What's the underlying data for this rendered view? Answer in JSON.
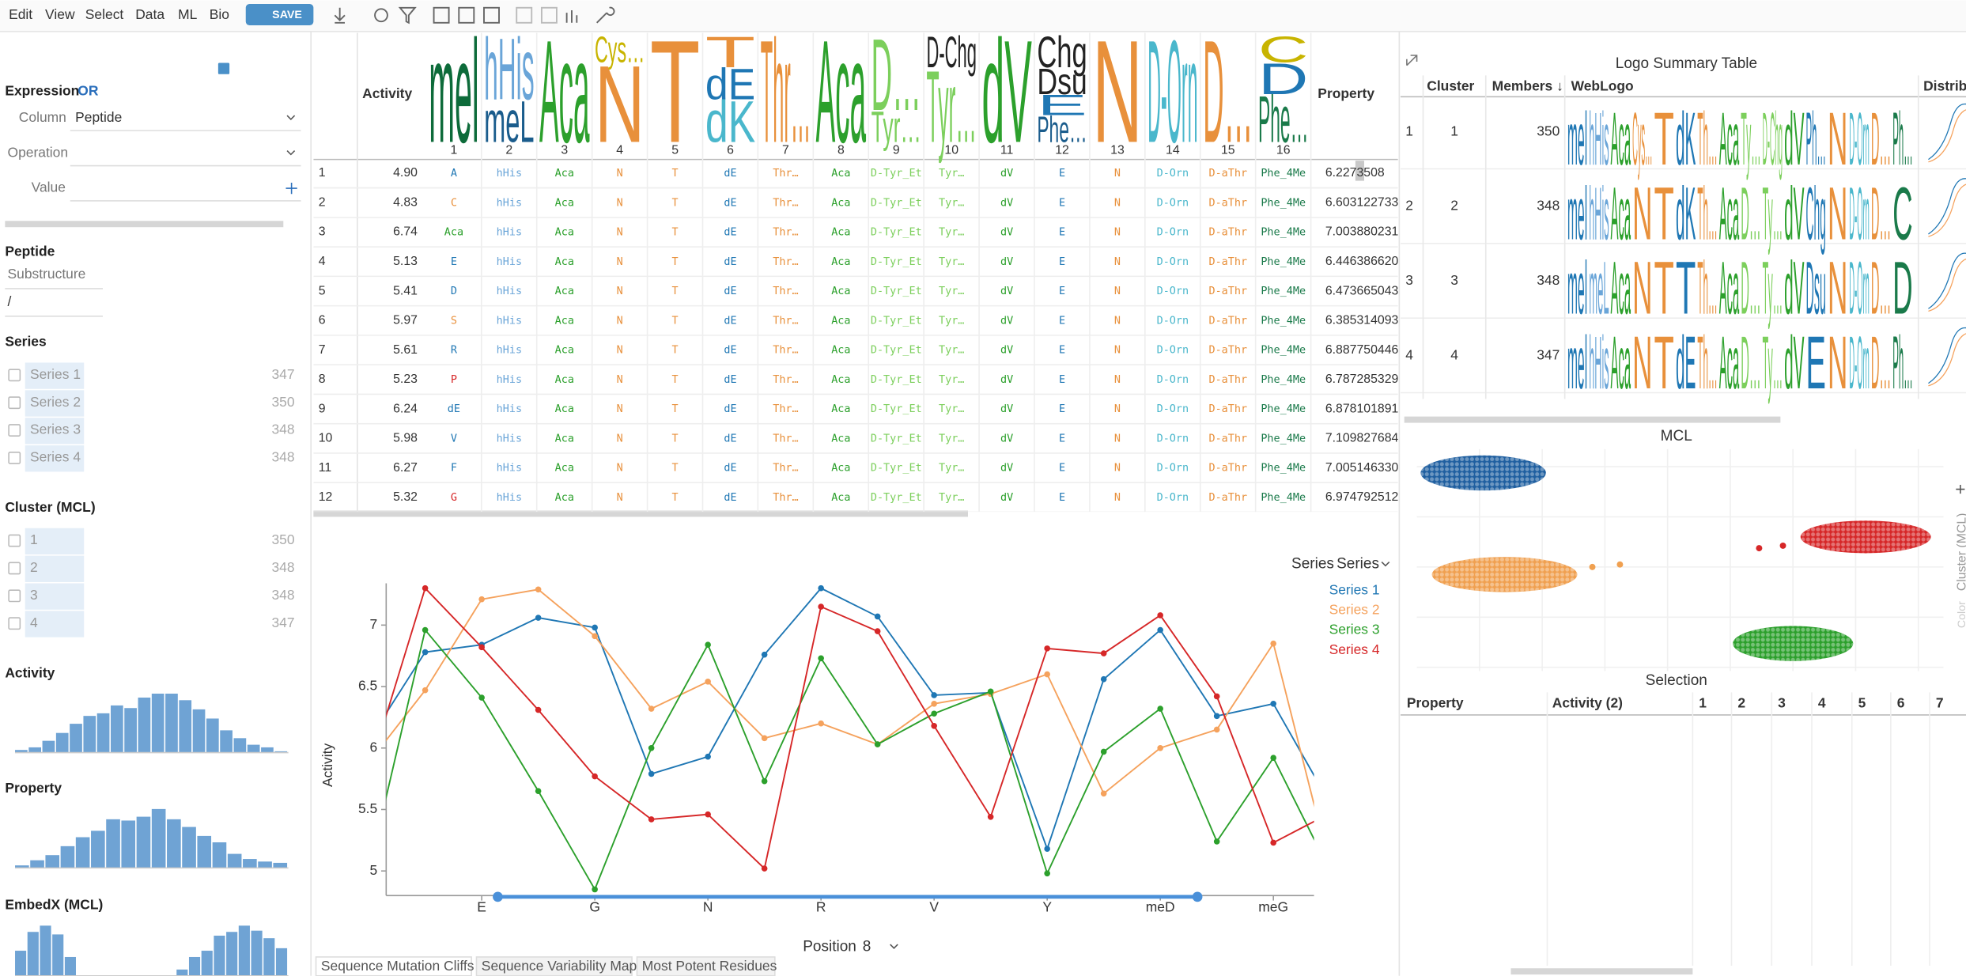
{
  "menu": [
    "Edit",
    "View",
    "Select",
    "Data",
    "ML",
    "Bio"
  ],
  "save": "SAVE",
  "filters": {
    "expression": "Expression",
    "mode": "OR",
    "fields": [
      {
        "label": "Column",
        "value": "Peptide"
      },
      {
        "label": "Operation",
        "value": ""
      },
      {
        "label": "Value",
        "value": ""
      }
    ],
    "peptide": {
      "title": "Peptide",
      "substructure": "Substructure",
      "pattern": "/"
    },
    "series": {
      "title": "Series",
      "items": [
        "Series 1",
        "Series 2",
        "Series 3",
        "Series 4"
      ],
      "counts": [
        347,
        350,
        348,
        348
      ]
    },
    "clusters": {
      "title": "Cluster (MCL)",
      "items": [
        "1",
        "2",
        "3",
        "4"
      ],
      "counts": [
        350,
        348,
        348,
        347
      ]
    },
    "histograms": [
      {
        "title": "Activity",
        "bars": [
          2,
          4,
          9,
          15,
          22,
          28,
          30,
          36,
          34,
          42,
          45,
          45,
          40,
          33,
          26,
          17,
          11,
          6,
          4,
          1
        ]
      },
      {
        "title": "Property",
        "bars": [
          2,
          6,
          10,
          17,
          24,
          29,
          38,
          37,
          40,
          46,
          38,
          32,
          25,
          20,
          11,
          7,
          5,
          4
        ]
      },
      {
        "title": "EmbedX (MCL)",
        "bars": [
          20,
          35,
          40,
          33,
          15,
          0,
          0,
          0,
          0,
          0,
          0,
          0,
          0,
          5,
          15,
          20,
          32,
          35,
          40,
          36,
          30,
          22
        ]
      }
    ]
  },
  "grid": {
    "columns": {
      "activity": "Activity",
      "property": "Property",
      "positions": [
        "1",
        "2",
        "3",
        "4",
        "5",
        "6",
        "7",
        "8",
        "9",
        "10",
        "11",
        "12",
        "13",
        "14",
        "15",
        "16"
      ]
    },
    "logos": [
      [
        {
          "text": "mel",
          "color": "#0d6b3a",
          "share": 1
        }
      ],
      [
        {
          "text": "hHis",
          "color": "#6aa5d8",
          "share": 0.6
        },
        {
          "text": "meL",
          "color": "#1a5c8c",
          "share": 0.4
        }
      ],
      [
        {
          "text": "Aca",
          "color": "#2ca02c",
          "share": 1
        }
      ],
      [
        {
          "text": "Cys…",
          "color": "#c8b400",
          "share": 0.25
        },
        {
          "text": "N",
          "color": "#e8903b",
          "share": 0.75
        }
      ],
      [
        {
          "text": "T",
          "color": "#e8903b",
          "share": 1
        }
      ],
      [
        {
          "text": "T",
          "color": "#e8903b",
          "share": 0.3
        },
        {
          "text": "dE",
          "color": "#1f77b4",
          "share": 0.3
        },
        {
          "text": "dK",
          "color": "#4ab7cc",
          "share": 0.4
        }
      ],
      [
        {
          "text": "Thr…",
          "color": "#e8903b",
          "share": 1
        }
      ],
      [
        {
          "text": "Aca",
          "color": "#2ca02c",
          "share": 1
        }
      ],
      [
        {
          "text": "D…",
          "color": "#7ccf5c",
          "share": 0.7
        },
        {
          "text": "Tyr…",
          "color": "#7ccf5c",
          "share": 0.3
        }
      ],
      [
        {
          "text": "D-Chg",
          "color": "#222222",
          "share": 0.3
        },
        {
          "text": "Tyr…",
          "color": "#7ccf5c",
          "share": 0.7
        }
      ],
      [
        {
          "text": "dV",
          "color": "#2ca02c",
          "share": 1
        }
      ],
      [
        {
          "text": "Chg",
          "color": "#222222",
          "share": 0.3
        },
        {
          "text": "Dsu",
          "color": "#222222",
          "share": 0.25
        },
        {
          "text": "E",
          "color": "#1f77b4",
          "share": 0.2
        },
        {
          "text": "Phe…",
          "color": "#1a5c8c",
          "share": 0.25
        }
      ],
      [
        {
          "text": "N",
          "color": "#e8903b",
          "share": 1
        }
      ],
      [
        {
          "text": "D-Orn",
          "color": "#4ab7cc",
          "share": 1
        }
      ],
      [
        {
          "text": "D…",
          "color": "#e8903b",
          "share": 1
        }
      ],
      [
        {
          "text": "C",
          "color": "#c8b400",
          "share": 0.25
        },
        {
          "text": "D",
          "color": "#1f77b4",
          "share": 0.3
        },
        {
          "text": "Phe…",
          "color": "#1a7a4a",
          "share": 0.45
        }
      ]
    ],
    "position_colors": [
      "#1f77b4",
      "#6aa5d8",
      "#2ca02c",
      "#e8903b",
      "#e8903b",
      "#1f77b4",
      "#e8903b",
      "#2ca02c",
      "#7ccf5c",
      "#7ccf5c",
      "#2ca02c",
      "#1f77b4",
      "#e8903b",
      "#4ab7cc",
      "#e8903b",
      "#1a7a4a"
    ],
    "first_colors": [
      "#1f77b4",
      "#e8903b",
      "#2ca02c",
      "#1f77b4",
      "#1f77b4",
      "#e8903b",
      "#1f77b4",
      "#d62728",
      "#1f77b4",
      "#1f77b4",
      "#1f77b4",
      "#d62728"
    ],
    "rows": [
      [
        "1",
        "4.90",
        "A",
        "hHis",
        "Aca",
        "N",
        "T",
        "dE",
        "Thr…",
        "Aca",
        "D-Tyr_Et",
        "Tyr…",
        "dV",
        "E",
        "N",
        "D-Orn",
        "D-aThr",
        "Phe_4Me",
        "6.2273508"
      ],
      [
        "2",
        "4.83",
        "C",
        "hHis",
        "Aca",
        "N",
        "T",
        "dE",
        "Thr…",
        "Aca",
        "D-Tyr_Et",
        "Tyr…",
        "dV",
        "E",
        "N",
        "D-Orn",
        "D-aThr",
        "Phe_4Me",
        "6.603122733"
      ],
      [
        "3",
        "6.74",
        "Aca",
        "hHis",
        "Aca",
        "N",
        "T",
        "dE",
        "Thr…",
        "Aca",
        "D-Tyr_Et",
        "Tyr…",
        "dV",
        "E",
        "N",
        "D-Orn",
        "D-aThr",
        "Phe_4Me",
        "7.003880231"
      ],
      [
        "4",
        "5.13",
        "E",
        "hHis",
        "Aca",
        "N",
        "T",
        "dE",
        "Thr…",
        "Aca",
        "D-Tyr_Et",
        "Tyr…",
        "dV",
        "E",
        "N",
        "D-Orn",
        "D-aThr",
        "Phe_4Me",
        "6.446386620"
      ],
      [
        "5",
        "5.41",
        "D",
        "hHis",
        "Aca",
        "N",
        "T",
        "dE",
        "Thr…",
        "Aca",
        "D-Tyr_Et",
        "Tyr…",
        "dV",
        "E",
        "N",
        "D-Orn",
        "D-aThr",
        "Phe_4Me",
        "6.473665043"
      ],
      [
        "6",
        "5.97",
        "S",
        "hHis",
        "Aca",
        "N",
        "T",
        "dE",
        "Thr…",
        "Aca",
        "D-Tyr_Et",
        "Tyr…",
        "dV",
        "E",
        "N",
        "D-Orn",
        "D-aThr",
        "Phe_4Me",
        "6.385314093"
      ],
      [
        "7",
        "5.61",
        "R",
        "hHis",
        "Aca",
        "N",
        "T",
        "dE",
        "Thr…",
        "Aca",
        "D-Tyr_Et",
        "Tyr…",
        "dV",
        "E",
        "N",
        "D-Orn",
        "D-aThr",
        "Phe_4Me",
        "6.887750446"
      ],
      [
        "8",
        "5.23",
        "P",
        "hHis",
        "Aca",
        "N",
        "T",
        "dE",
        "Thr…",
        "Aca",
        "D-Tyr_Et",
        "Tyr…",
        "dV",
        "E",
        "N",
        "D-Orn",
        "D-aThr",
        "Phe_4Me",
        "6.787285329"
      ],
      [
        "9",
        "6.24",
        "dE",
        "hHis",
        "Aca",
        "N",
        "T",
        "dE",
        "Thr…",
        "Aca",
        "D-Tyr_Et",
        "Tyr…",
        "dV",
        "E",
        "N",
        "D-Orn",
        "D-aThr",
        "Phe_4Me",
        "6.878101891"
      ],
      [
        "10",
        "5.98",
        "V",
        "hHis",
        "Aca",
        "N",
        "T",
        "dE",
        "Thr…",
        "Aca",
        "D-Tyr_Et",
        "Tyr…",
        "dV",
        "E",
        "N",
        "D-Orn",
        "D-aThr",
        "Phe_4Me",
        "7.109827684"
      ],
      [
        "11",
        "6.27",
        "F",
        "hHis",
        "Aca",
        "N",
        "T",
        "dE",
        "Thr…",
        "Aca",
        "D-Tyr_Et",
        "Tyr…",
        "dV",
        "E",
        "N",
        "D-Orn",
        "D-aThr",
        "Phe_4Me",
        "7.005146330"
      ],
      [
        "12",
        "5.32",
        "G",
        "hHis",
        "Aca",
        "N",
        "T",
        "dE",
        "Thr…",
        "Aca",
        "D-Tyr_Et",
        "Tyr…",
        "dV",
        "E",
        "N",
        "D-Orn",
        "D-aThr",
        "Phe_4Me",
        "6.974792512"
      ]
    ]
  },
  "chart_data": {
    "type": "line",
    "y_label": "Activity",
    "x_label": "Position",
    "x_value": "8",
    "selector_label": "Series",
    "selector_value": "Series",
    "categories": [
      null,
      null,
      "E",
      null,
      "G",
      null,
      "N",
      null,
      "R",
      null,
      "V",
      null,
      "Y",
      null,
      "meD",
      null,
      "meG",
      null
    ],
    "ylim": [
      4.8,
      7.34
    ],
    "yticks": [
      5,
      5.5,
      6,
      6.5,
      7
    ],
    "series": [
      {
        "name": "Series 1",
        "color": "#1f77b4",
        "values": [
          6.06,
          6.78,
          6.84,
          7.06,
          6.98,
          5.79,
          5.93,
          6.76,
          7.3,
          7.07,
          6.43,
          6.45,
          5.18,
          6.56,
          6.96,
          6.26,
          6.36,
          5.55
        ]
      },
      {
        "name": "Series 2",
        "color": "#f5a25d",
        "values": [
          5.88,
          6.47,
          7.21,
          7.29,
          6.91,
          6.32,
          6.54,
          6.08,
          6.2,
          6.03,
          6.36,
          6.44,
          6.6,
          5.63,
          6.0,
          6.15,
          6.85,
          5.03
        ]
      },
      {
        "name": "Series 3",
        "color": "#2ca02c",
        "values": [
          4.99,
          6.96,
          6.41,
          5.65,
          4.85,
          6.0,
          6.84,
          5.73,
          6.73,
          6.03,
          6.28,
          6.46,
          4.98,
          5.97,
          6.32,
          5.24,
          5.92,
          5.0
        ]
      },
      {
        "name": "Series 4",
        "color": "#d62728",
        "values": [
          5.8,
          7.3,
          6.82,
          6.31,
          5.77,
          5.42,
          5.46,
          5.02,
          7.15,
          6.95,
          6.18,
          5.44,
          6.81,
          6.77,
          7.08,
          6.42,
          5.23,
          5.47
        ]
      }
    ]
  },
  "summary": {
    "title": "Logo Summary Table",
    "columns": [
      "Cluster",
      "Members ↓",
      "WebLogo",
      "Distributi"
    ],
    "rows": [
      {
        "index": "1",
        "cluster": "1",
        "members": "350",
        "logo": [
          "mel",
          "hHis",
          "Aca",
          "Cys…",
          "T",
          "dK",
          "Th…",
          "Aca",
          "Ty…",
          "D-Chg",
          "dV",
          "Ph…",
          "N",
          "D-Orn",
          "D…",
          "Ph…"
        ]
      },
      {
        "index": "2",
        "cluster": "2",
        "members": "348",
        "logo": [
          "mel",
          "hHis",
          "Aca",
          "N",
          "T",
          "dK",
          "Th…",
          "Aca",
          "D…",
          "Ty…",
          "dV",
          "Chg",
          "N",
          "D-Orn",
          "D…",
          "C"
        ]
      },
      {
        "index": "3",
        "cluster": "3",
        "members": "348",
        "logo": [
          "mel",
          "meL",
          "Aca",
          "N",
          "T",
          "T",
          "Th…",
          "Aca",
          "D…",
          "Ty…",
          "dV",
          "Dsu",
          "N",
          "D-Orn",
          "D…",
          "D"
        ]
      },
      {
        "index": "4",
        "cluster": "4",
        "members": "347",
        "logo": [
          "mel",
          "hHis",
          "Aca",
          "N",
          "T",
          "dE",
          "Th…",
          "Aca",
          "D…",
          "Ty…",
          "dV",
          "E",
          "N",
          "D-Orn",
          "D…",
          "Ph…"
        ]
      }
    ]
  },
  "mcl": {
    "title": "MCL",
    "axis": "Cluster (MCL)",
    "color_label": "Color"
  },
  "selection": {
    "title": "Selection",
    "columns": [
      "Property",
      "Activity (2)",
      "1",
      "2",
      "3",
      "4",
      "5",
      "6",
      "7"
    ]
  },
  "tabs": [
    "Sequence Mutation Cliffs",
    "Sequence Variability Map",
    "Most Potent Residues"
  ]
}
